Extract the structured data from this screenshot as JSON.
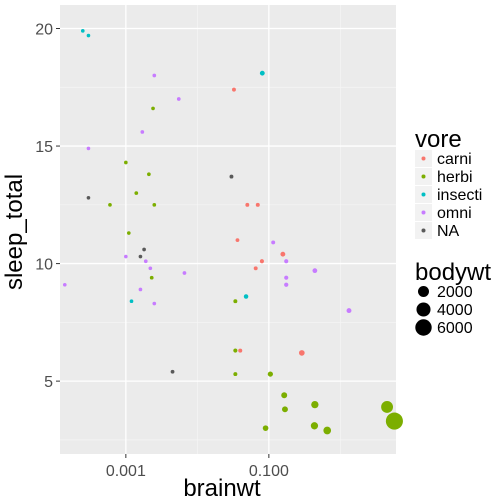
{
  "chart_data": {
    "type": "scatter",
    "xlabel": "brainwt",
    "ylabel": "sleep_total",
    "x_scale": "log10",
    "xlim": [
      0.00012,
      6.0
    ],
    "ylim": [
      1.9,
      21.0
    ],
    "x_ticks": [
      {
        "value": 0.001,
        "label": "0.001"
      },
      {
        "value": 0.1,
        "label": "0.100"
      }
    ],
    "y_ticks": [
      {
        "value": 5,
        "label": "5"
      },
      {
        "value": 10,
        "label": "10"
      },
      {
        "value": 15,
        "label": "15"
      },
      {
        "value": 20,
        "label": "20"
      }
    ],
    "grid": true,
    "panel_background": "#ebebeb",
    "legend_position": "right",
    "legend": {
      "color_title": "vore",
      "color_entries": [
        {
          "label": "carni",
          "color": "#F8766D"
        },
        {
          "label": "herbi",
          "color": "#7CAE00"
        },
        {
          "label": "insecti",
          "color": "#00BFC4"
        },
        {
          "label": "omni",
          "color": "#C77CFF"
        },
        {
          "label": "NA",
          "color": "#595959"
        }
      ],
      "size_title": "bodywt",
      "size_entries": [
        {
          "label": "2000",
          "value": 2000
        },
        {
          "label": "4000",
          "value": 4000
        },
        {
          "label": "6000",
          "value": 6000
        }
      ]
    },
    "series": [
      {
        "name": "carni",
        "color": "#F8766D",
        "points": [
          {
            "x": 0.0325,
            "y": 17.4,
            "bodywt": 3
          },
          {
            "x": 0.05,
            "y": 12.5,
            "bodywt": 3
          },
          {
            "x": 0.07,
            "y": 12.5,
            "bodywt": 5
          },
          {
            "x": 0.0364,
            "y": 11.0,
            "bodywt": 1
          },
          {
            "x": 0.0655,
            "y": 9.8,
            "bodywt": 4
          },
          {
            "x": 0.08,
            "y": 10.1,
            "bodywt": 10
          },
          {
            "x": 0.157,
            "y": 10.4,
            "bodywt": 60
          },
          {
            "x": 0.0398,
            "y": 6.3,
            "bodywt": 6
          },
          {
            "x": 0.289,
            "y": 6.2,
            "bodywt": 160
          }
        ]
      },
      {
        "name": "herbi",
        "color": "#7CAE00",
        "points": [
          {
            "x": 0.001,
            "y": 14.3,
            "bodywt": 0.1
          },
          {
            "x": 0.0021,
            "y": 13.8,
            "bodywt": 0.2
          },
          {
            "x": 0.0014,
            "y": 13.0,
            "bodywt": 0.3
          },
          {
            "x": 0.0006,
            "y": 12.5,
            "bodywt": 0.1
          },
          {
            "x": 0.0025,
            "y": 12.5,
            "bodywt": 0.3
          },
          {
            "x": 0.0024,
            "y": 16.6,
            "bodywt": 0.4
          },
          {
            "x": 0.0011,
            "y": 11.3,
            "bodywt": 0.1
          },
          {
            "x": 0.0023,
            "y": 9.4,
            "bodywt": 0.5
          },
          {
            "x": 0.034,
            "y": 8.4,
            "bodywt": 5
          },
          {
            "x": 0.034,
            "y": 6.3,
            "bodywt": 10
          },
          {
            "x": 0.034,
            "y": 5.3,
            "bodywt": 5
          },
          {
            "x": 0.105,
            "y": 5.3,
            "bodywt": 100
          },
          {
            "x": 0.164,
            "y": 4.4,
            "bodywt": 200
          },
          {
            "x": 0.168,
            "y": 3.8,
            "bodywt": 200
          },
          {
            "x": 0.44,
            "y": 4.0,
            "bodywt": 500
          },
          {
            "x": 0.09,
            "y": 3.0,
            "bodywt": 150
          },
          {
            "x": 0.434,
            "y": 3.1,
            "bodywt": 500
          },
          {
            "x": 0.655,
            "y": 2.9,
            "bodywt": 600
          },
          {
            "x": 4.5,
            "y": 3.9,
            "bodywt": 2500
          },
          {
            "x": 5.7,
            "y": 3.3,
            "bodywt": 6654
          }
        ]
      },
      {
        "name": "insecti",
        "color": "#00BFC4",
        "points": [
          {
            "x": 0.00025,
            "y": 19.9,
            "bodywt": 0.02
          },
          {
            "x": 0.0003,
            "y": 19.7,
            "bodywt": 0.02
          },
          {
            "x": 0.081,
            "y": 18.1,
            "bodywt": 60
          },
          {
            "x": 0.0012,
            "y": 8.4,
            "bodywt": 0.1
          },
          {
            "x": 0.048,
            "y": 8.6,
            "bodywt": 30
          }
        ]
      },
      {
        "name": "omni",
        "color": "#C77CFF",
        "points": [
          {
            "x": 0.0025,
            "y": 18.0,
            "bodywt": 0.3
          },
          {
            "x": 0.0055,
            "y": 17.0,
            "bodywt": 0.4
          },
          {
            "x": 0.0017,
            "y": 15.6,
            "bodywt": 0.2
          },
          {
            "x": 0.0003,
            "y": 14.9,
            "bodywt": 0.02
          },
          {
            "x": 0.115,
            "y": 10.9,
            "bodywt": 5
          },
          {
            "x": 0.001,
            "y": 10.3,
            "bodywt": 0.1
          },
          {
            "x": 0.0019,
            "y": 10.1,
            "bodywt": 0.2
          },
          {
            "x": 0.0022,
            "y": 9.8,
            "bodywt": 0.3
          },
          {
            "x": 0.0066,
            "y": 9.6,
            "bodywt": 0.5
          },
          {
            "x": 0.175,
            "y": 10.1,
            "bodywt": 10
          },
          {
            "x": 0.175,
            "y": 9.4,
            "bodywt": 12
          },
          {
            "x": 0.175,
            "y": 9.1,
            "bodywt": 15
          },
          {
            "x": 0.44,
            "y": 9.7,
            "bodywt": 50
          },
          {
            "x": 1.32,
            "y": 8.0,
            "bodywt": 62
          },
          {
            "x": 0.00014,
            "y": 9.1,
            "bodywt": 0.005
          },
          {
            "x": 0.0016,
            "y": 8.9,
            "bodywt": 0.2
          },
          {
            "x": 0.0025,
            "y": 8.3,
            "bodywt": 0.3
          }
        ]
      },
      {
        "name": "NA",
        "color": "#595959",
        "points": [
          {
            "x": 0.0003,
            "y": 12.8,
            "bodywt": 0.02
          },
          {
            "x": 0.03,
            "y": 13.7,
            "bodywt": 3
          },
          {
            "x": 0.0018,
            "y": 10.6,
            "bodywt": 0.2
          },
          {
            "x": 0.0016,
            "y": 10.3,
            "bodywt": 0.2
          },
          {
            "x": 0.0045,
            "y": 5.4,
            "bodywt": 1
          }
        ]
      }
    ]
  }
}
